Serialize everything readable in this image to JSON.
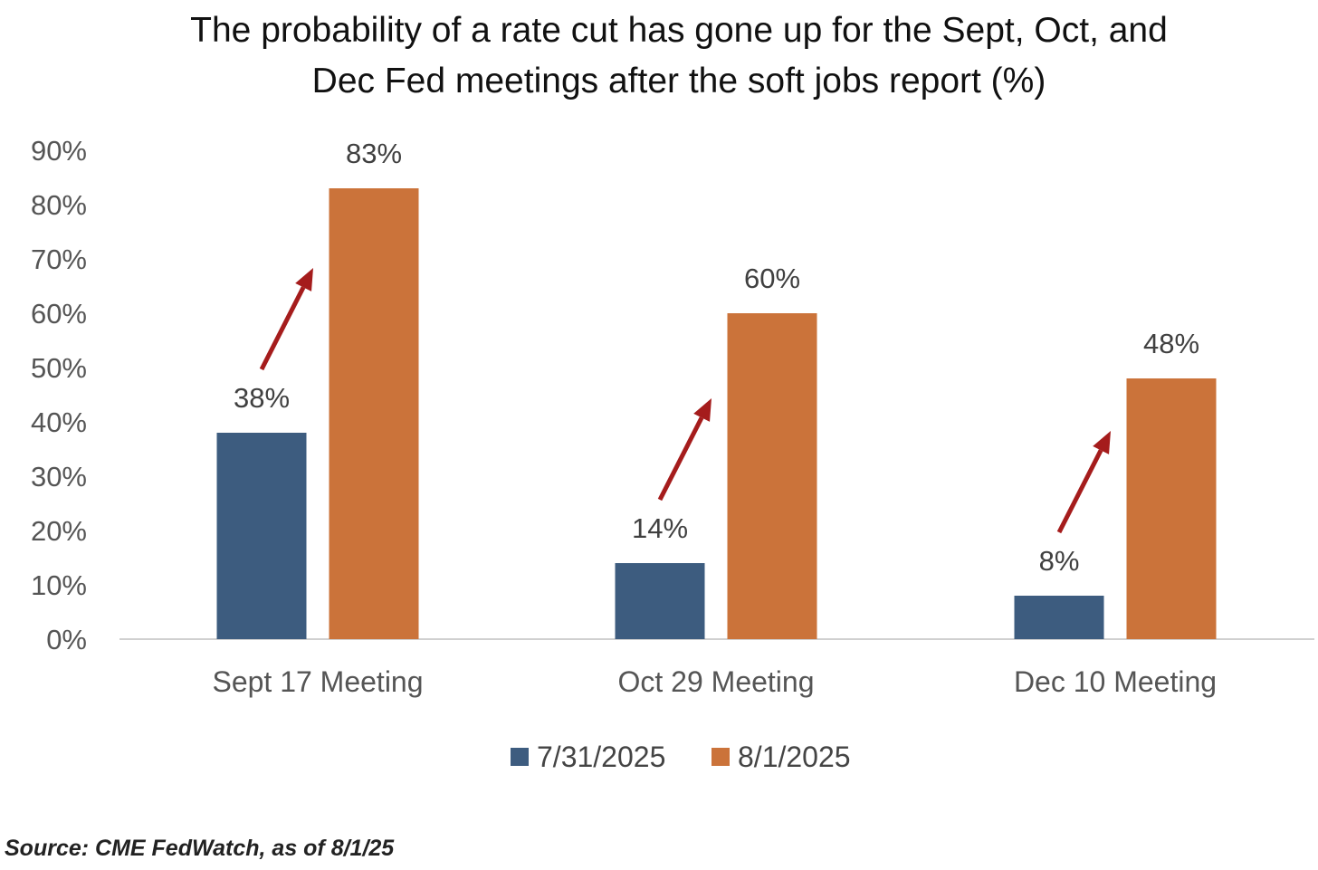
{
  "chart_data": {
    "type": "bar",
    "title_lines": [
      "The probability of a rate cut has gone up for the Sept, Oct, and",
      "Dec Fed meetings after the soft jobs report (%)"
    ],
    "categories": [
      "Sept 17 Meeting",
      "Oct 29 Meeting",
      "Dec 10 Meeting"
    ],
    "series": [
      {
        "name": "7/31/2025",
        "values": [
          38,
          14,
          8
        ],
        "labels": [
          "38%",
          "14%",
          "8%"
        ],
        "color": "#3d5c7f"
      },
      {
        "name": "8/1/2025",
        "values": [
          83,
          60,
          48
        ],
        "labels": [
          "83%",
          "60%",
          "48%"
        ],
        "color": "#cb733a"
      }
    ],
    "ylim": [
      0,
      90
    ],
    "yticks": [
      0,
      10,
      20,
      30,
      40,
      50,
      60,
      70,
      80,
      90
    ],
    "ytick_labels": [
      "0%",
      "10%",
      "20%",
      "30%",
      "40%",
      "50%",
      "60%",
      "70%",
      "80%",
      "90%"
    ],
    "xlabel": "",
    "ylabel": "",
    "grid": false,
    "legend_position": "bottom-center",
    "annotations": {
      "arrows": "increase arrow between each pair of bars",
      "arrow_color": "#a51c1c"
    },
    "source": "Source: CME FedWatch, as of 8/1/25"
  }
}
